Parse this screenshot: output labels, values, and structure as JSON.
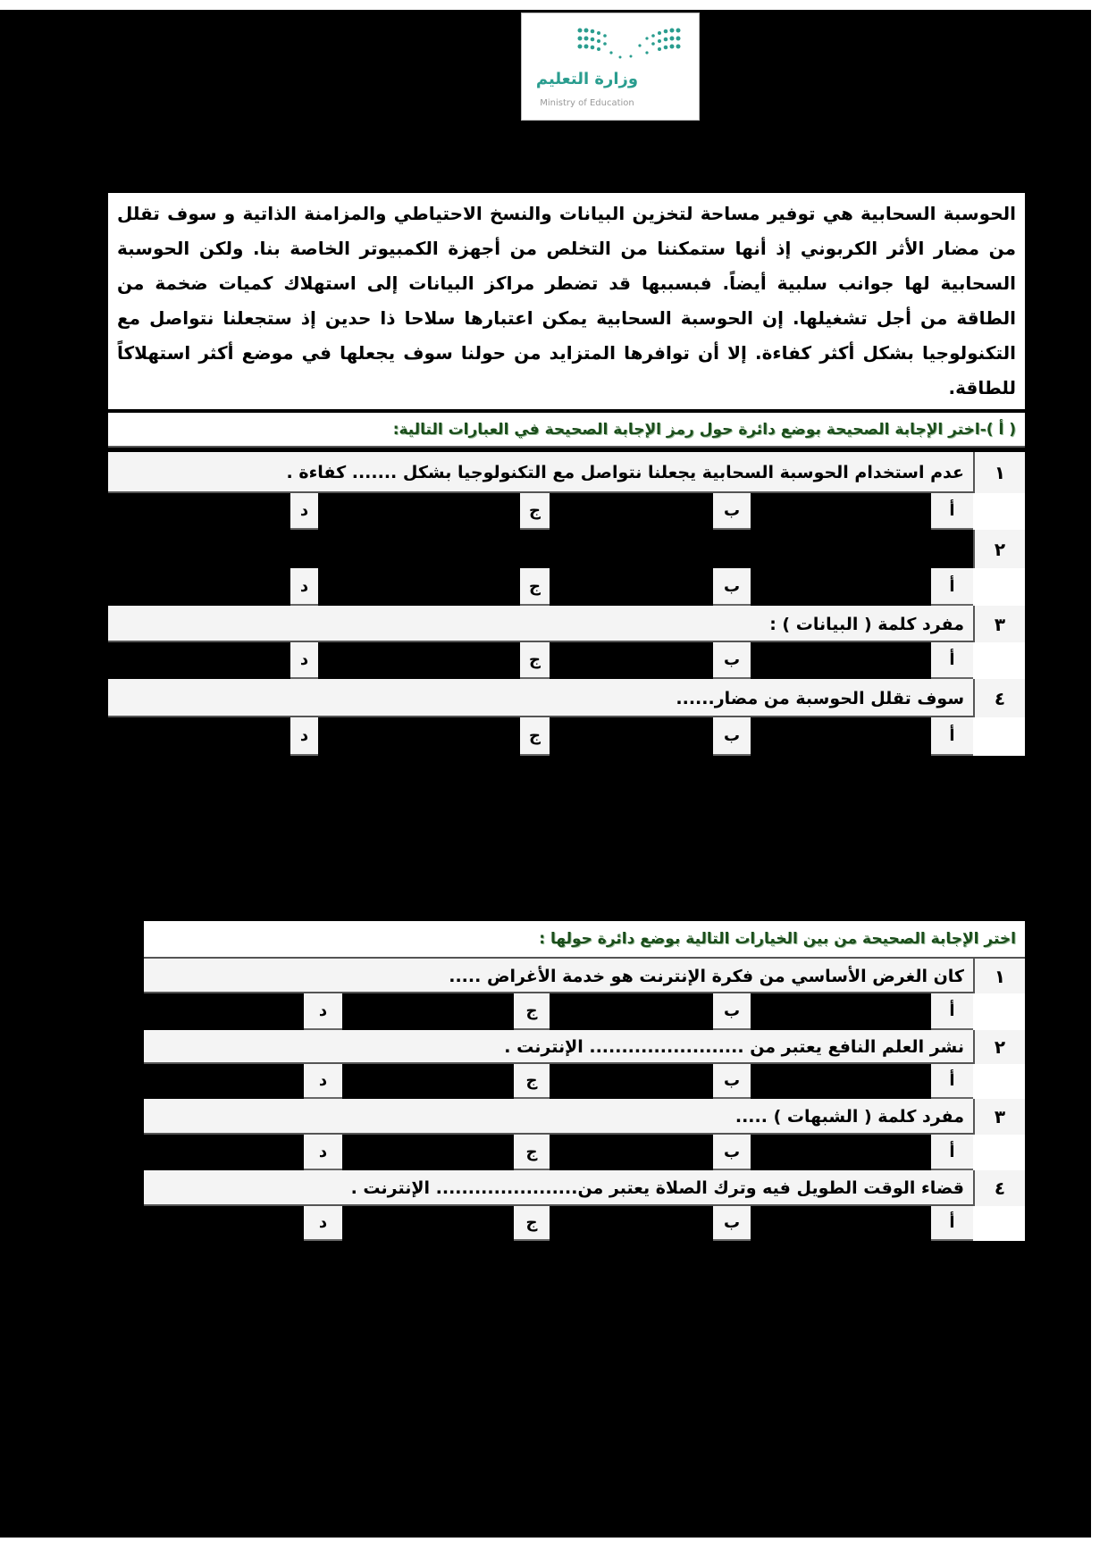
{
  "logo": {
    "arabic": "وزارة التعليم",
    "english": "Ministry of Education",
    "color": "#2a9d8f"
  },
  "passage": "الحوسبة السحابية هي توفير مساحة لتخزين البيانات والنسخ الاحتياطي والمزامنة الذاتية و سوف تقلل من مضار الأثر الكربوني إذ أنها ستمكننا من التخلص من أجهزة الكمبيوتر الخاصة بنا. ولكن الحوسبة السحابية لها جوانب سلبية أيضاً. فبسببها قد تضطر مراكز البيانات إلى استهلاك كميات ضخمة من الطاقة من أجل تشغيلها. إن الحوسبة السحابية يمكن اعتبارها سلاحا ذا حدين  إذ ستجعلنا نتواصل مع التكنولوجيا بشكل أكثر كفاءة. إلا أن توافرها المتزايد من حولنا سوف يجعلها في موضع أكثر استهلاكاً للطاقة.",
  "section1": {
    "instruction": "( أ )-اختر الإجابة الصحيحة بوضع دائرة حول رمز الإجابة الصحيحة في العبارات التالية:",
    "questions": [
      {
        "num": "١",
        "text": "عدم استخدام الحوسبة السحابية يجعلنا نتواصل مع التكنولوجيا بشكل ....... كفاءة ."
      },
      {
        "num": "٢",
        "text": ""
      },
      {
        "num": "٣",
        "text": "مفرد كلمة ( البيانات  )   :"
      },
      {
        "num": "٤",
        "text": "سوف تقلل الحوسبة من مضار......"
      }
    ]
  },
  "section2": {
    "instruction": "اختر الإجابة الصحيحة من بين الخيارات التالية بوضع دائرة حولها :",
    "questions": [
      {
        "num": "١",
        "text": "كان الغرض الأساسي من فكرة الإنترنت هو خدمة الأغراض ....."
      },
      {
        "num": "٢",
        "text": "نشر العلم النافع يعتبر من ........................ الإنترنت ."
      },
      {
        "num": "٣",
        "text": "مفرد كلمة   ( الشبهات  )  ....."
      },
      {
        "num": "٤",
        "text": "قضاء الوقت الطويل فيه وترك الصلاة يعتبر من...................... الإنترنت ."
      }
    ]
  },
  "options": [
    "أ",
    "ب",
    "ج",
    "د"
  ],
  "instruction_color": "#1b4d1b"
}
